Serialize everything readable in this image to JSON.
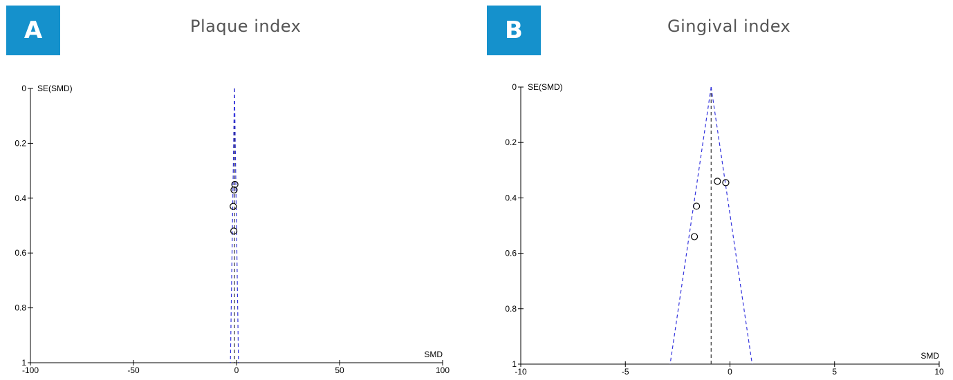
{
  "panels": [
    {
      "letter": "A",
      "title": "Plaque index"
    },
    {
      "letter": "B",
      "title": "Gingival index"
    }
  ],
  "chart_data": [
    {
      "type": "scatter",
      "subtype": "funnel plot",
      "title": "Plaque index",
      "xlabel": "SMD",
      "ylabel": "SE(SMD)",
      "xlim": [
        -100,
        100
      ],
      "ylim": [
        0,
        1
      ],
      "y_inverted": true,
      "x_ticks": [
        -100,
        -50,
        0,
        50,
        100
      ],
      "x_tick_labels": [
        "-100",
        "-50",
        "0",
        "50",
        "100"
      ],
      "y_ticks": [
        0,
        0.2,
        0.4,
        0.6,
        0.8,
        1
      ],
      "y_tick_labels": [
        "0",
        "0.2",
        "0.4",
        "0.6",
        "0.8",
        "1"
      ],
      "pooled_smd": -1,
      "line_color": "#3333dd",
      "points": [
        {
          "x": -0.8,
          "y": 0.35
        },
        {
          "x": -1.2,
          "y": 0.37
        },
        {
          "x": -1.6,
          "y": 0.43
        },
        {
          "x": -1.3,
          "y": 0.52
        }
      ],
      "grid": false
    },
    {
      "type": "scatter",
      "subtype": "funnel plot",
      "title": "Gingival index",
      "xlabel": "SMD",
      "ylabel": "SE(SMD)",
      "xlim": [
        -10,
        10
      ],
      "ylim": [
        0,
        1
      ],
      "y_inverted": true,
      "x_ticks": [
        -10,
        -5,
        0,
        5,
        10
      ],
      "x_tick_labels": [
        "-10",
        "-5",
        "0",
        "5",
        "10"
      ],
      "y_ticks": [
        0,
        0.2,
        0.4,
        0.6,
        0.8,
        1
      ],
      "y_tick_labels": [
        "0",
        "0.2",
        "0.4",
        "0.6",
        "0.8",
        "1"
      ],
      "pooled_smd": -0.9,
      "line_color": "#3333dd",
      "points": [
        {
          "x": -0.6,
          "y": 0.34
        },
        {
          "x": -0.2,
          "y": 0.345
        },
        {
          "x": -1.6,
          "y": 0.43
        },
        {
          "x": -1.7,
          "y": 0.54
        }
      ],
      "grid": false
    }
  ]
}
